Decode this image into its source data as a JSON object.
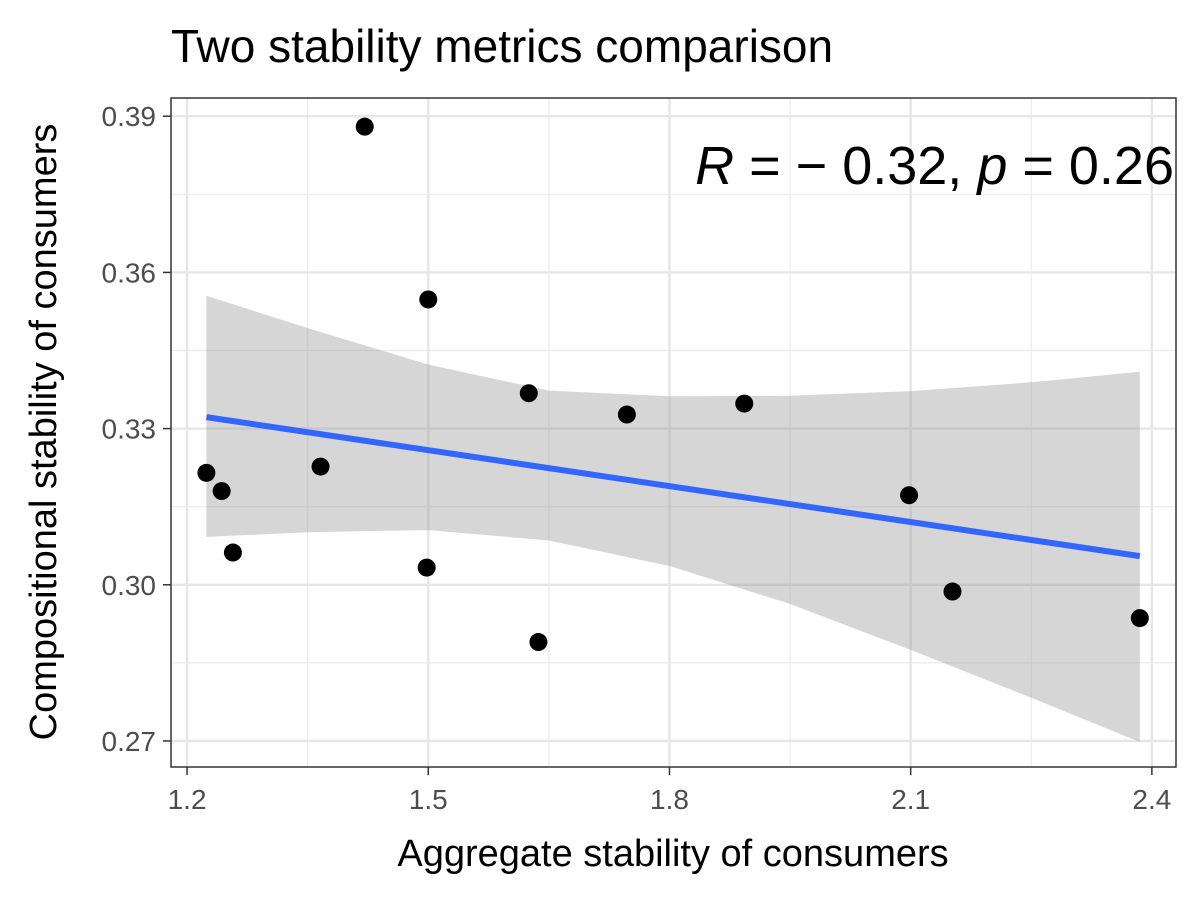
{
  "chart_data": {
    "type": "scatter",
    "title": "Two stability metrics comparison",
    "xlabel": "Aggregate stability of consumers",
    "ylabel": "Compositional stability of consumers",
    "xlim": [
      1.18,
      2.43
    ],
    "ylim": [
      0.265,
      0.3935
    ],
    "x_ticks": [
      1.2,
      1.5,
      1.8,
      2.1,
      2.4
    ],
    "x_tick_labels": [
      "1.2",
      "1.5",
      "1.8",
      "2.1",
      "2.4"
    ],
    "y_ticks": [
      0.27,
      0.3,
      0.33,
      0.36,
      0.39
    ],
    "y_tick_labels": [
      "0.27",
      "0.30",
      "0.33",
      "0.36",
      "0.39"
    ],
    "grid": true,
    "points": [
      {
        "x": 1.224,
        "y": 0.3215
      },
      {
        "x": 1.243,
        "y": 0.318
      },
      {
        "x": 1.257,
        "y": 0.3062
      },
      {
        "x": 1.366,
        "y": 0.3227
      },
      {
        "x": 1.421,
        "y": 0.388
      },
      {
        "x": 1.498,
        "y": 0.3033
      },
      {
        "x": 1.5,
        "y": 0.3548
      },
      {
        "x": 1.625,
        "y": 0.3368
      },
      {
        "x": 1.637,
        "y": 0.289
      },
      {
        "x": 1.747,
        "y": 0.3327
      },
      {
        "x": 1.893,
        "y": 0.3348
      },
      {
        "x": 2.098,
        "y": 0.3172
      },
      {
        "x": 2.152,
        "y": 0.2987
      },
      {
        "x": 2.385,
        "y": 0.2936
      }
    ],
    "regression": {
      "x_start": 1.224,
      "x_end": 2.385,
      "y_start": 0.3322,
      "y_end": 0.3055,
      "color": "#3366FF"
    },
    "confidence_band": {
      "color": "#999999",
      "x": [
        1.224,
        1.35,
        1.5,
        1.65,
        1.8,
        1.95,
        2.1,
        2.25,
        2.385
      ],
      "lower": [
        0.3092,
        0.3101,
        0.3105,
        0.3085,
        0.3036,
        0.2963,
        0.2875,
        0.2783,
        0.2698
      ],
      "upper": [
        0.3555,
        0.3493,
        0.3423,
        0.3373,
        0.3362,
        0.3363,
        0.3372,
        0.3389,
        0.3409
      ]
    },
    "annotation": {
      "r_symbol": "R",
      "r_eq": " = − 0.32, ",
      "p_symbol": "p",
      "p_eq": " = 0.26",
      "position": "top-right"
    },
    "point_color": "#000000"
  }
}
